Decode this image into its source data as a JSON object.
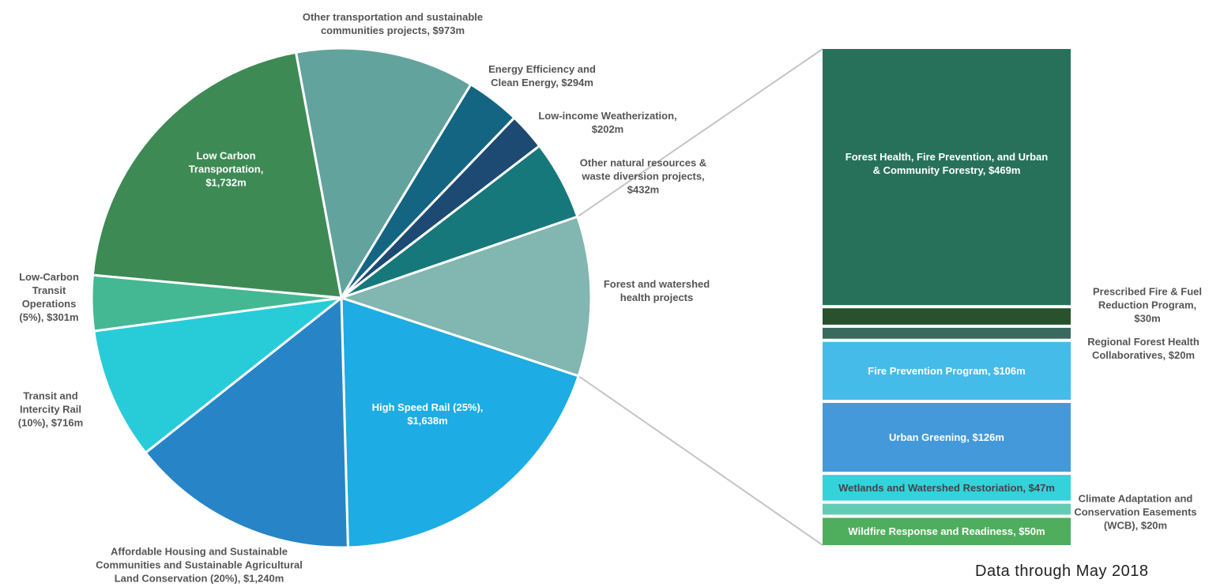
{
  "note": "Data through May 2018",
  "chart_data": [
    {
      "type": "pie",
      "unit": "$m",
      "slices": [
        {
          "label_lines": [
            "Other transportation and sustainable",
            "communities projects, $973m"
          ],
          "value": 973,
          "color": "#62a39d",
          "label_inside": false
        },
        {
          "label_lines": [
            "Energy Efficiency and",
            "Clean Energy, $294m"
          ],
          "value": 294,
          "color": "#136582",
          "label_inside": false
        },
        {
          "label_lines": [
            "Low-income Weatherization,",
            "$202m"
          ],
          "value": 202,
          "color": "#1c4a73",
          "label_inside": false
        },
        {
          "label_lines": [
            "Other natural resources &",
            "waste diversion projects,",
            "$432m"
          ],
          "value": 432,
          "color": "#17787b",
          "label_inside": false
        },
        {
          "label_lines": [
            "Forest and watershed",
            "health projects"
          ],
          "value": 868,
          "color": "#82b6b0",
          "label_inside": false
        },
        {
          "label_lines": [
            "High Speed Rail (25%),",
            "$1,638m"
          ],
          "value": 1638,
          "color": "#1dace3",
          "label_inside": true
        },
        {
          "label_lines": [
            "Affordable Housing and Sustainable",
            "Communities and Sustainable Agricultural",
            "Land Conservation (20%), $1,240m"
          ],
          "value": 1240,
          "color": "#2784c7",
          "label_inside": false
        },
        {
          "label_lines": [
            "Transit and",
            "Intercity Rail",
            "(10%), $716m"
          ],
          "value": 716,
          "color": "#28ccd9",
          "label_inside": false
        },
        {
          "label_lines": [
            "Low-Carbon",
            "Transit",
            "Operations",
            "(5%), $301m"
          ],
          "value": 301,
          "color": "#44b893",
          "label_inside": false
        },
        {
          "label_lines": [
            "Low Carbon",
            "Transportation,",
            "$1,732m"
          ],
          "value": 1732,
          "color": "#3e8a55",
          "label_inside": true
        }
      ]
    },
    {
      "type": "bar",
      "stacked": true,
      "detail_of": "Forest and watershed health projects",
      "segments": [
        {
          "label_lines": [
            "Forest Health, Fire Prevention, and Urban",
            "& Community Forestry, $469m"
          ],
          "value": 469,
          "color": "#27715a",
          "label_inside": true,
          "text_color": "#ffffff"
        },
        {
          "label_lines": [
            "Prescribed Fire & Fuel",
            "Reduction Program,",
            "$30m"
          ],
          "value": 30,
          "color": "#28512d",
          "label_inside": false
        },
        {
          "label_lines": [
            "Regional Forest Health",
            "Collaboratives, $20m"
          ],
          "value": 20,
          "color": "#386b5e",
          "label_inside": false
        },
        {
          "label_lines": [
            "Fire Prevention Program, $106m"
          ],
          "value": 106,
          "color": "#45bbe9",
          "label_inside": true,
          "text_color": "#ffffff"
        },
        {
          "label_lines": [
            "Urban Greening, $126m"
          ],
          "value": 126,
          "color": "#4399d9",
          "label_inside": true,
          "text_color": "#ffffff"
        },
        {
          "label_lines": [
            "Wetlands and Watershed Restoriation, $47m"
          ],
          "value": 47,
          "color": "#34d2db",
          "label_inside": true,
          "text_color": "#3a3a3a"
        },
        {
          "label_lines": [
            "Climate Adaptation and",
            "Conservation Easements",
            "(WCB), $20m"
          ],
          "value": 20,
          "color": "#62cdb4",
          "label_inside": false
        },
        {
          "label_lines": [
            "Wildfire Response and Readiness, $50m"
          ],
          "value": 50,
          "color": "#4fae5d",
          "label_inside": true,
          "text_color": "#ffffff"
        }
      ]
    }
  ]
}
